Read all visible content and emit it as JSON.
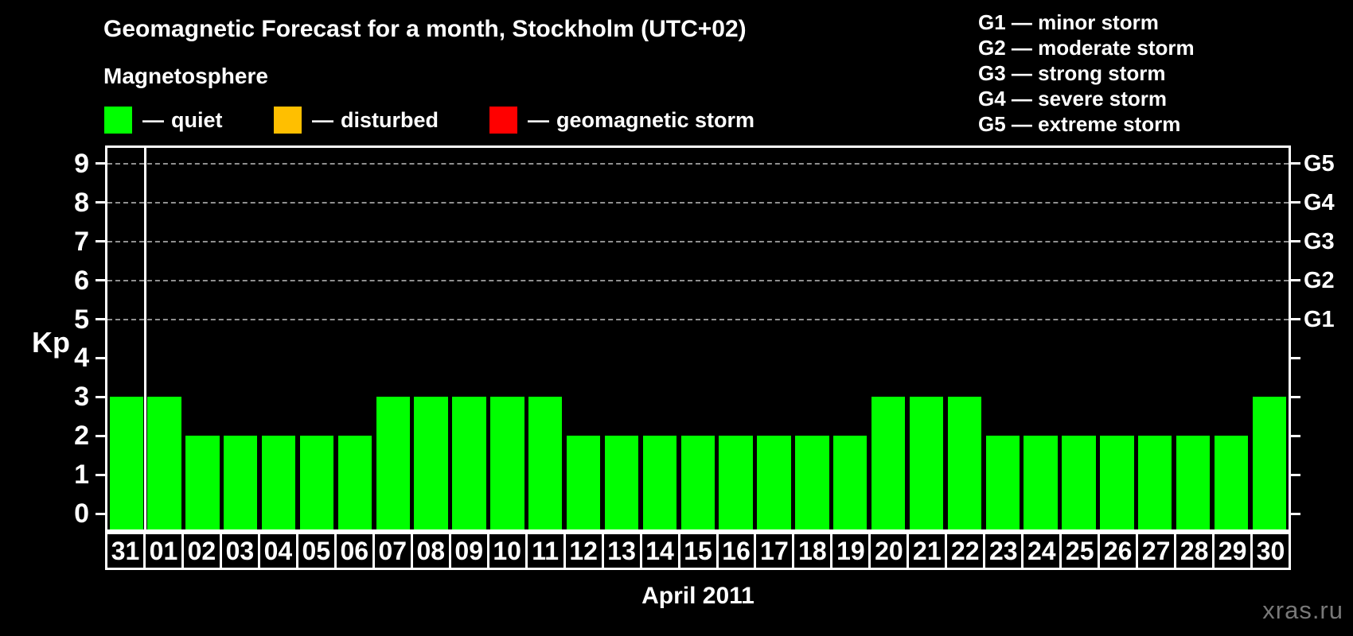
{
  "header": {
    "title": "Geomagnetic Forecast for a month, Stockholm (UTC+02)",
    "subtitle": "Magnetosphere"
  },
  "legend": {
    "dash": "—",
    "items": [
      {
        "name": "quiet",
        "label": "quiet",
        "color": "#00ff00"
      },
      {
        "name": "disturbed",
        "label": "disturbed",
        "color": "#ffbf00"
      },
      {
        "name": "geomagnetic-storm",
        "label": "geomagnetic storm",
        "color": "#ff0000"
      }
    ]
  },
  "storm_scale": {
    "items": [
      {
        "code": "G1",
        "label": "minor storm",
        "kp": 5
      },
      {
        "code": "G2",
        "label": "moderate storm",
        "kp": 6
      },
      {
        "code": "G3",
        "label": "strong storm",
        "kp": 7
      },
      {
        "code": "G4",
        "label": "severe storm",
        "kp": 8
      },
      {
        "code": "G5",
        "label": "extreme storm",
        "kp": 9
      }
    ]
  },
  "watermark": "xras.ru",
  "chart_data": {
    "type": "bar",
    "title": "Geomagnetic Forecast for a month, Stockholm (UTC+02)",
    "xlabel": "April 2011",
    "ylabel": "Kp",
    "categories": [
      "31",
      "01",
      "02",
      "03",
      "04",
      "05",
      "06",
      "07",
      "08",
      "09",
      "10",
      "11",
      "12",
      "13",
      "14",
      "15",
      "16",
      "17",
      "18",
      "19",
      "20",
      "21",
      "22",
      "23",
      "24",
      "25",
      "26",
      "27",
      "28",
      "29",
      "30"
    ],
    "values": [
      3,
      3,
      2,
      2,
      2,
      2,
      2,
      3,
      3,
      3,
      3,
      3,
      2,
      2,
      2,
      2,
      2,
      2,
      2,
      2,
      3,
      3,
      3,
      2,
      2,
      2,
      2,
      2,
      2,
      2,
      3
    ],
    "bar_color": "#00ff00",
    "background": "#000000",
    "ylim": [
      -0.4,
      9.4
    ],
    "yticks": [
      0,
      1,
      2,
      3,
      4,
      5,
      6,
      7,
      8,
      9
    ],
    "grid_levels": [
      5,
      6,
      7,
      8,
      9
    ],
    "grid_style": "dashed horizontal, gray",
    "right_axis_labels": [
      "G1",
      "G2",
      "G3",
      "G4",
      "G5"
    ],
    "separator_after_index": 0,
    "legend_position": "top-left"
  }
}
